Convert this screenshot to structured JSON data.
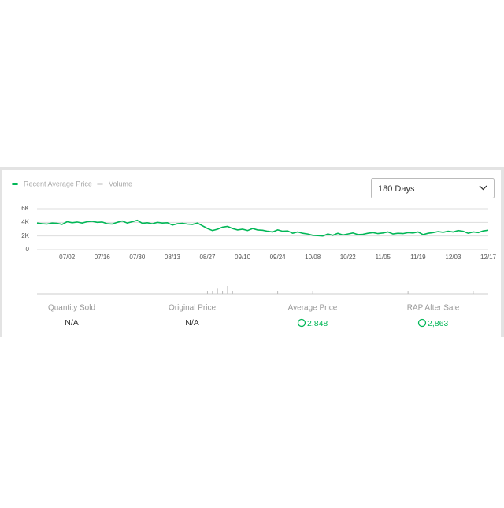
{
  "controls": {
    "range": "180 Days"
  },
  "chart_data": {
    "type": "line",
    "categories": [
      null,
      null,
      null,
      null,
      null,
      null,
      "07/02",
      null,
      null,
      null,
      null,
      null,
      null,
      "07/16",
      null,
      null,
      null,
      null,
      null,
      null,
      "07/30",
      null,
      null,
      null,
      null,
      null,
      null,
      "08/13",
      null,
      null,
      null,
      null,
      null,
      null,
      "08/27",
      null,
      null,
      null,
      null,
      null,
      null,
      "09/10",
      null,
      null,
      null,
      null,
      null,
      null,
      "09/24",
      null,
      null,
      null,
      null,
      null,
      null,
      "10/08",
      null,
      null,
      null,
      null,
      null,
      null,
      "10/22",
      null,
      null,
      null,
      null,
      null,
      null,
      "11/05",
      null,
      null,
      null,
      null,
      null,
      null,
      "11/19",
      null,
      null,
      null,
      null,
      null,
      null,
      "12/03",
      null,
      null,
      null,
      null,
      null,
      null,
      "12/17"
    ],
    "series": [
      {
        "name": "Recent Average Price",
        "color": "#02b757",
        "values": [
          3900,
          3800,
          3750,
          3900,
          3850,
          3700,
          4100,
          3950,
          4050,
          3900,
          4100,
          4150,
          4000,
          4050,
          3800,
          3750,
          4000,
          4200,
          3900,
          4100,
          4300,
          3850,
          3950,
          3800,
          4000,
          3900,
          3950,
          3600,
          3800,
          3850,
          3750,
          3700,
          3900,
          3500,
          3100,
          2800,
          3000,
          3300,
          3400,
          3100,
          2900,
          3000,
          2800,
          3100,
          2900,
          2850,
          2700,
          2600,
          2900,
          2700,
          2750,
          2400,
          2600,
          2400,
          2300,
          2100,
          2050,
          2000,
          2300,
          2100,
          2400,
          2150,
          2300,
          2450,
          2200,
          2250,
          2400,
          2500,
          2350,
          2450,
          2600,
          2300,
          2400,
          2350,
          2500,
          2450,
          2600,
          2200,
          2400,
          2500,
          2650,
          2550,
          2700,
          2600,
          2800,
          2700,
          2400,
          2600,
          2500,
          2750,
          2850
        ]
      },
      {
        "name": "Volume",
        "color": "#dddddd",
        "values": [
          0,
          0,
          0,
          0,
          0,
          0,
          0,
          0,
          0,
          0,
          0,
          0,
          0,
          0,
          0,
          0,
          0,
          0,
          0,
          0,
          0,
          0,
          0,
          0,
          0,
          0,
          0,
          0,
          0,
          0,
          0,
          0,
          0,
          0,
          1,
          1,
          2,
          1,
          3,
          1,
          0,
          0,
          0,
          0,
          0,
          0,
          0,
          0,
          1,
          0,
          0,
          0,
          0,
          0,
          0,
          1,
          0,
          0,
          0,
          0,
          0,
          0,
          0,
          0,
          0,
          0,
          0,
          0,
          0,
          0,
          0,
          0,
          0,
          0,
          1,
          0,
          0,
          0,
          0,
          0,
          0,
          0,
          0,
          0,
          0,
          0,
          0,
          1,
          0,
          0,
          0
        ]
      }
    ],
    "ylim": [
      0,
      6000
    ],
    "yticks": [
      {
        "value": 0,
        "label": "0"
      },
      {
        "value": 2000,
        "label": "2K"
      },
      {
        "value": 4000,
        "label": "4K"
      },
      {
        "value": 6000,
        "label": "6K"
      }
    ],
    "grid": true
  },
  "stats": [
    {
      "label": "Quantity Sold",
      "value": "N/A"
    },
    {
      "label": "Original Price",
      "value": "N/A"
    },
    {
      "label": "Average Price",
      "value": "2,848"
    },
    {
      "label": "RAP After Sale",
      "value": "2,863"
    }
  ]
}
